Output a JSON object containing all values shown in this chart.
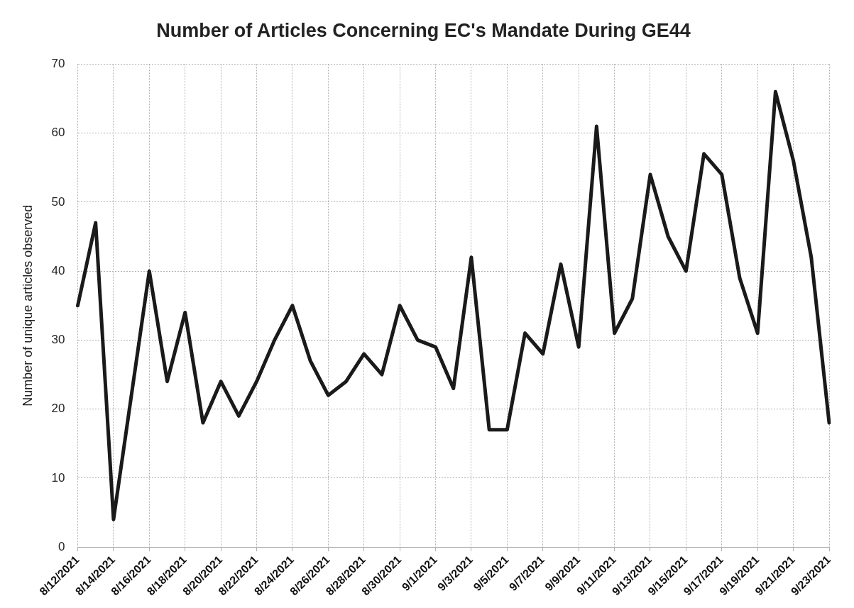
{
  "chart_data": {
    "type": "line",
    "title": "Number of Articles Concerning EC's Mandate During GE44",
    "ylabel": "Number of unique articles observed",
    "categories": [
      "8/12/2021",
      null,
      "8/14/2021",
      null,
      "8/16/2021",
      null,
      "8/18/2021",
      null,
      "8/20/2021",
      null,
      "8/22/2021",
      null,
      "8/24/2021",
      null,
      "8/26/2021",
      null,
      "8/28/2021",
      null,
      "8/30/2021",
      null,
      "9/1/2021",
      null,
      "9/3/2021",
      null,
      "9/5/2021",
      null,
      "9/7/2021",
      null,
      "9/9/2021",
      null,
      "9/11/2021",
      null,
      "9/13/2021",
      null,
      "9/15/2021",
      null,
      "9/17/2021",
      null,
      "9/19/2021",
      null,
      "9/21/2021",
      null,
      "9/23/2021"
    ],
    "series": [
      {
        "color": "#1a1a1a",
        "values": [
          35,
          47,
          4,
          22,
          40,
          24,
          34,
          18,
          24,
          19,
          24,
          30,
          35,
          27,
          22,
          24,
          28,
          25,
          35,
          30,
          29,
          23,
          42,
          17,
          17,
          31,
          28,
          41,
          29,
          61,
          31,
          36,
          54,
          45,
          40,
          57,
          54,
          39,
          31,
          66,
          56,
          42,
          18
        ]
      }
    ],
    "ylim": [
      0,
      70
    ],
    "yticks": [
      0,
      10,
      20,
      30,
      40,
      50,
      60,
      70
    ],
    "grid": true,
    "legend": false,
    "marker": "none",
    "line_style": "solid"
  }
}
